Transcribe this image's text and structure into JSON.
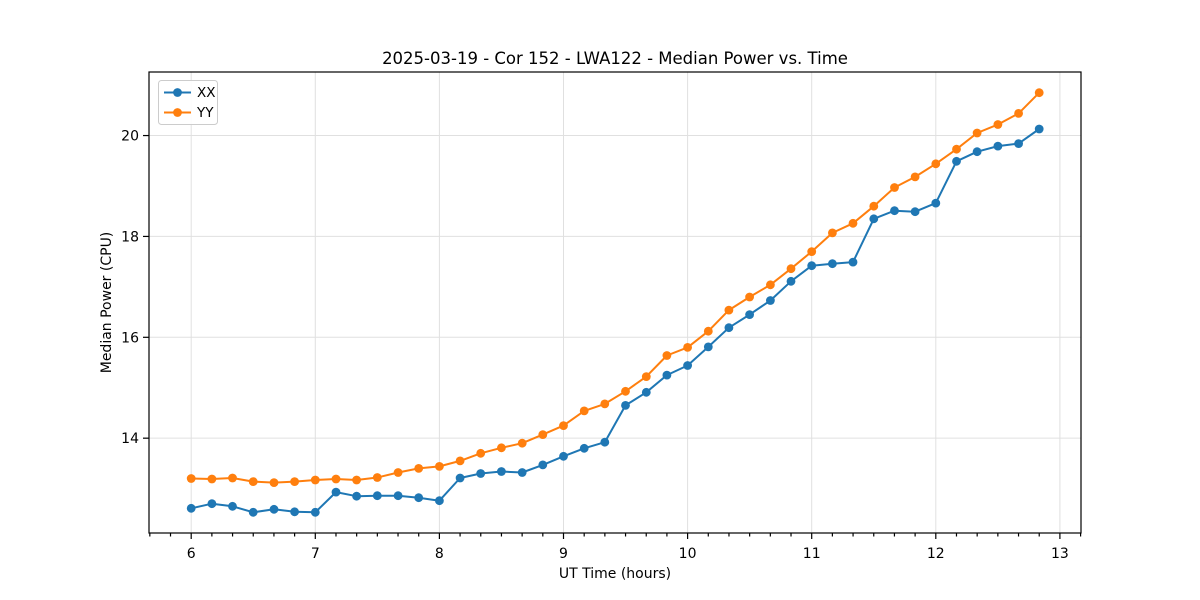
{
  "colors": {
    "series_xx": "#1f77b4",
    "series_yy": "#ff7f0e",
    "grid": "#e0e0e0",
    "frame": "#000000",
    "background": "#ffffff"
  },
  "chart_data": {
    "type": "line",
    "title": "2025-03-19 - Cor 152 - LWA122 - Median Power vs. Time",
    "xlabel": "UT Time (hours)",
    "ylabel": "Median Power (CPU)",
    "grid": true,
    "legend_position": "upper left",
    "marker": "circle",
    "xlim": [
      5.66,
      13.17
    ],
    "ylim": [
      12.12,
      21.26
    ],
    "x_ticks": [
      6,
      7,
      8,
      9,
      10,
      11,
      12,
      13
    ],
    "y_ticks": [
      14,
      16,
      18,
      20
    ],
    "x_minor_ticks_per_major": 6,
    "x": [
      6.0,
      6.167,
      6.333,
      6.5,
      6.667,
      6.833,
      7.0,
      7.167,
      7.333,
      7.5,
      7.667,
      7.833,
      8.0,
      8.167,
      8.333,
      8.5,
      8.667,
      8.833,
      9.0,
      9.167,
      9.333,
      9.5,
      9.667,
      9.833,
      10.0,
      10.167,
      10.333,
      10.5,
      10.667,
      10.833,
      11.0,
      11.167,
      11.333,
      11.5,
      11.667,
      11.833,
      12.0,
      12.167,
      12.333,
      12.5,
      12.667,
      12.833
    ],
    "series": [
      {
        "name": "XX",
        "color": "#1f77b4",
        "values": [
          12.61,
          12.7,
          12.65,
          12.53,
          12.59,
          12.54,
          12.53,
          12.93,
          12.85,
          12.86,
          12.86,
          12.82,
          12.76,
          13.21,
          13.3,
          13.34,
          13.32,
          13.47,
          13.64,
          13.8,
          13.92,
          14.65,
          14.91,
          15.25,
          15.44,
          15.81,
          16.19,
          16.45,
          16.73,
          17.11,
          17.42,
          17.46,
          17.49,
          18.35,
          18.51,
          18.49,
          18.66,
          19.49,
          19.68,
          19.79,
          19.84,
          20.13
        ]
      },
      {
        "name": "YY",
        "color": "#ff7f0e",
        "values": [
          13.2,
          13.19,
          13.21,
          13.14,
          13.12,
          13.14,
          13.17,
          13.19,
          13.17,
          13.22,
          13.32,
          13.4,
          13.44,
          13.55,
          13.7,
          13.81,
          13.9,
          14.07,
          14.25,
          14.54,
          14.68,
          14.93,
          15.22,
          15.64,
          15.8,
          16.12,
          16.54,
          16.8,
          17.04,
          17.36,
          17.7,
          18.07,
          18.26,
          18.6,
          18.97,
          19.18,
          19.44,
          19.73,
          20.05,
          20.22,
          20.44,
          20.85
        ]
      }
    ]
  }
}
